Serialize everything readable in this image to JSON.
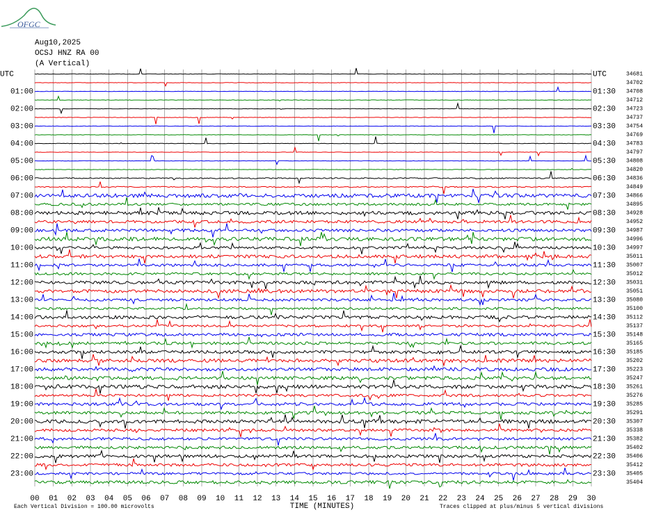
{
  "header": {
    "logo": "OFGC",
    "date": "Aug10,2025",
    "station": "OCSJ HNZ RA 00",
    "component": "(A Vertical)"
  },
  "left_labels": [
    "UTC",
    "01:00",
    "02:00",
    "03:00",
    "04:00",
    "05:00",
    "06:00",
    "07:00",
    "08:00",
    "09:00",
    "10:00",
    "11:00",
    "12:00",
    "13:00",
    "14:00",
    "15:00",
    "16:00",
    "17:00",
    "18:00",
    "19:00",
    "20:00",
    "21:00",
    "22:00",
    "23:00"
  ],
  "right_labels": [
    "UTC",
    "01:30",
    "02:30",
    "03:30",
    "04:30",
    "05:30",
    "06:30",
    "07:30",
    "08:30",
    "09:30",
    "10:30",
    "11:30",
    "12:30",
    "13:30",
    "14:30",
    "15:30",
    "16:30",
    "17:30",
    "18:30",
    "19:30",
    "20:30",
    "21:30",
    "22:30",
    "23:30"
  ],
  "trace_values": [
    "34681",
    "34702",
    "34708",
    "34712",
    "34723",
    "34737",
    "34754",
    "34769",
    "34783",
    "34797",
    "34808",
    "34820",
    "34836",
    "34849",
    "34866",
    "34895",
    "34928",
    "34952",
    "34987",
    "34996",
    "34997",
    "35011",
    "35007",
    "35012",
    "35031",
    "35051",
    "35080",
    "35100",
    "35112",
    "35137",
    "35148",
    "35165",
    "35185",
    "35202",
    "35223",
    "35247",
    "35261",
    "35276",
    "35285",
    "35291",
    "35307",
    "35338",
    "35382",
    "35402",
    "35406",
    "35412",
    "35405",
    "35404"
  ],
  "x_ticks": [
    "00",
    "01",
    "02",
    "03",
    "04",
    "05",
    "06",
    "07",
    "08",
    "09",
    "10",
    "11",
    "12",
    "13",
    "14",
    "15",
    "16",
    "17",
    "18",
    "19",
    "20",
    "21",
    "22",
    "23",
    "24",
    "25",
    "26",
    "27",
    "28",
    "29",
    "30"
  ],
  "footer": {
    "scale": "Each Vertical Division =  100.00 microvolts",
    "x_label": "TIME (MINUTES)",
    "clip": "Traces clipped at plus/minus 5 vertical divisions"
  }
}
